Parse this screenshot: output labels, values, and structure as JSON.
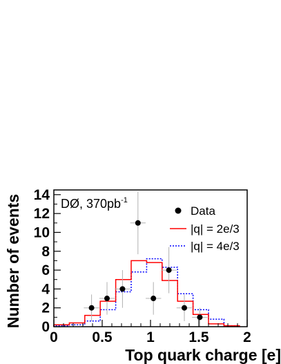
{
  "chart_data": {
    "type": "histogram",
    "xlabel": "Top quark charge [e]",
    "ylabel": "Number of events",
    "xlim": [
      0,
      2
    ],
    "ylim": [
      0,
      14.5
    ],
    "x_ticks": [
      "0",
      "0.5",
      "1",
      "1.5",
      "2"
    ],
    "y_ticks": [
      "0",
      "2",
      "4",
      "6",
      "8",
      "10",
      "12",
      "14"
    ],
    "annotation": {
      "text": "DØ, 370pb",
      "superscript": "-1"
    },
    "legend_position": "top-right",
    "bin_edges": [
      0,
      0.16,
      0.32,
      0.48,
      0.64,
      0.8,
      0.96,
      1.12,
      1.28,
      1.44,
      1.6,
      1.76,
      1.92
    ],
    "series": [
      {
        "name": "Data",
        "style": "points-with-errors",
        "color": "#000000",
        "x": [
          0.39,
          0.55,
          0.71,
          0.87,
          1.03,
          1.19,
          1.35,
          1.51
        ],
        "y": [
          2,
          3,
          4,
          11,
          3,
          6,
          2,
          1
        ]
      },
      {
        "name": "|q| = 2e/3",
        "style": "step-solid",
        "color": "#ff0000",
        "values": [
          0.2,
          0.4,
          1.2,
          2.7,
          5.0,
          7.0,
          6.8,
          4.9,
          2.7,
          1.3,
          0.3,
          0.1
        ]
      },
      {
        "name": "|q| = 4e/3",
        "style": "step-dotted",
        "color": "#0000ff",
        "values": [
          0.1,
          0.2,
          0.6,
          1.8,
          3.7,
          5.8,
          7.2,
          6.3,
          3.5,
          1.8,
          0.8,
          0.1
        ]
      }
    ]
  }
}
